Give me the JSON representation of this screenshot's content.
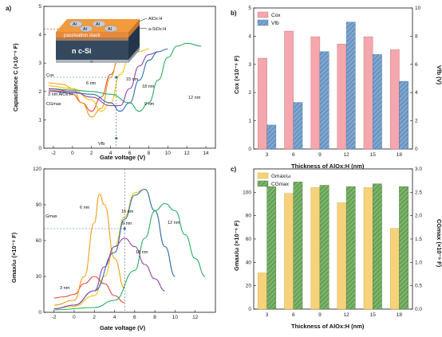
{
  "panel_labels": {
    "a": "a)",
    "b": "b)",
    "c": "c)"
  },
  "inset": {
    "top_layer": "AlOx:H",
    "middle_layer": "a-SiOx:H",
    "stack_label": "passivation stack",
    "substrate": "n c-Si",
    "bottom": "Al",
    "dot_label": "Al"
  },
  "colors": {
    "red_bar": "#f4a7ad",
    "blue_bar": "#7fa6cf",
    "yellow_bar": "#f7d27a",
    "green_bar": "#7bb36a",
    "c3": "#e74c3c",
    "c6": "#f39c12",
    "c9": "#f1c40f",
    "c12": "#27ae60",
    "c15": "#2c6fbb",
    "c18": "#8e44ad"
  },
  "chart_data": [
    {
      "id": "a_top",
      "type": "line",
      "xlabel": "Gate voltage (V)",
      "ylabel": "Capacitance C (×10⁻⁹ F)",
      "xlim": [
        -3,
        15
      ],
      "ylim": [
        0,
        5
      ],
      "xticks": [
        -2,
        0,
        2,
        4,
        6,
        8,
        10,
        12,
        14
      ],
      "yticks": [
        0,
        1,
        2,
        3,
        4,
        5
      ],
      "grid": false,
      "annotations": {
        "cox": "Cox",
        "cg": "CGmax",
        "vfb": "Vfb"
      },
      "marker_points": [
        [
          4.2,
          4.2
        ],
        [
          4.6,
          2.5
        ],
        [
          4.6,
          0.35
        ]
      ],
      "series": [
        {
          "name": "3 nm AlOx:H",
          "color_key": "c3",
          "x": [
            -2.5,
            -1,
            0,
            1,
            2,
            3,
            4,
            5,
            6
          ],
          "y": [
            2.05,
            2.0,
            1.9,
            1.6,
            1.3,
            1.8,
            2.6,
            3.3,
            3.7
          ]
        },
        {
          "name": "6 nm",
          "color_key": "c6",
          "x": [
            -2.5,
            -1,
            0,
            1,
            2,
            3,
            4,
            5,
            6,
            7
          ],
          "y": [
            2.3,
            2.25,
            2.1,
            1.6,
            1.1,
            1.4,
            2.5,
            3.5,
            3.9,
            4.0
          ]
        },
        {
          "name": "9 nm",
          "color_key": "c9",
          "x": [
            -2.5,
            0,
            2,
            3,
            4,
            5,
            6,
            7,
            8
          ],
          "y": [
            2.2,
            2.1,
            1.7,
            1.3,
            1.6,
            2.6,
            3.2,
            3.4,
            3.5
          ]
        },
        {
          "name": "12 nm",
          "color_key": "c12",
          "x": [
            -2.5,
            0,
            2,
            4,
            6,
            7,
            8,
            9,
            10,
            11,
            12,
            13.5
          ],
          "y": [
            2.1,
            2.05,
            2.0,
            1.9,
            1.6,
            1.3,
            1.6,
            2.4,
            3.2,
            3.6,
            3.7,
            3.6
          ]
        },
        {
          "name": "15 nm",
          "color_key": "c15",
          "x": [
            -2.5,
            0,
            2,
            4,
            5,
            6,
            7,
            8,
            9,
            10
          ],
          "y": [
            2.0,
            1.95,
            1.9,
            1.6,
            1.3,
            1.6,
            2.4,
            3.1,
            3.4,
            3.5
          ]
        },
        {
          "name": "18 nm",
          "color_key": "c18",
          "x": [
            -2.5,
            0,
            2,
            4,
            5,
            6,
            7,
            8,
            9
          ],
          "y": [
            2.1,
            2.0,
            1.8,
            1.5,
            1.5,
            2.1,
            2.9,
            3.3,
            3.4
          ]
        }
      ],
      "curve_labels": [
        "3 nm AlOx:H",
        "6 nm",
        "9 nm",
        "12 nm",
        "15 nm",
        "18 nm"
      ]
    },
    {
      "id": "a_bottom",
      "type": "line",
      "xlabel": "Gate voltage (V)",
      "ylabel": "Gmax/ω (×10⁻⁹ F)",
      "xlim": [
        -3,
        14
      ],
      "ylim": [
        0,
        120
      ],
      "xticks": [
        -2,
        0,
        2,
        4,
        6,
        8,
        10,
        12
      ],
      "yticks": [
        0,
        30,
        60,
        90,
        120
      ],
      "grid": false,
      "annotations": {
        "gmax": "Gmax"
      },
      "marker_points": [
        [
          5,
          70
        ]
      ],
      "series": [
        {
          "name": "3 nm",
          "color_key": "c3",
          "x": [
            -2,
            -1,
            0,
            1,
            2,
            3,
            4,
            5
          ],
          "y": [
            12,
            13,
            15,
            24,
            30,
            24,
            14,
            8
          ]
        },
        {
          "name": "6 nm",
          "color_key": "c6",
          "x": [
            -2,
            0,
            1,
            2,
            2.5,
            3,
            4,
            5
          ],
          "y": [
            6,
            10,
            30,
            75,
            99,
            90,
            45,
            20
          ]
        },
        {
          "name": "9 nm",
          "color_key": "c9",
          "x": [
            -2,
            0,
            2,
            3,
            4,
            5,
            6,
            7,
            8,
            9,
            10
          ],
          "y": [
            3,
            5,
            14,
            30,
            55,
            80,
            100,
            103,
            85,
            55,
            30
          ]
        },
        {
          "name": "12 nm",
          "color_key": "c12",
          "x": [
            -2,
            2,
            4,
            6,
            7,
            8,
            9,
            10,
            11,
            12,
            13
          ],
          "y": [
            2,
            4,
            10,
            35,
            62,
            85,
            91,
            85,
            65,
            45,
            30
          ]
        },
        {
          "name": "15 nm",
          "color_key": "c15",
          "x": [
            -2,
            0,
            2,
            4,
            5,
            6,
            7,
            8,
            9,
            10
          ],
          "y": [
            3,
            6,
            18,
            50,
            78,
            98,
            103,
            85,
            55,
            30
          ]
        },
        {
          "name": "18 nm",
          "color_key": "c18",
          "x": [
            -2,
            0,
            2,
            3,
            4,
            5,
            6,
            7,
            8,
            9
          ],
          "y": [
            3,
            6,
            18,
            38,
            55,
            62,
            55,
            40,
            28,
            18
          ]
        }
      ],
      "curve_labels": [
        "3 nm",
        "6 nm",
        "9 nm",
        "12 nm",
        "15 nm",
        "18 nm"
      ]
    },
    {
      "id": "b",
      "type": "bar",
      "xlabel": "Thickness of AlOx:H (nm)",
      "ylabel_left": "Cox (×10⁻⁹ F)",
      "ylabel_right": "Vfb (V)",
      "categories": [
        "3",
        "6",
        "9",
        "12",
        "15",
        "18"
      ],
      "ylim_left": [
        0,
        5
      ],
      "ylim_right": [
        0,
        10
      ],
      "yticks_left": [
        0,
        1,
        2,
        3,
        4,
        5
      ],
      "yticks_right": [
        0,
        2,
        4,
        6,
        8,
        10
      ],
      "legend_position": "top-left",
      "series": [
        {
          "name": "Cox",
          "axis": "left",
          "color_key": "red_bar",
          "values": [
            3.22,
            4.18,
            3.98,
            3.72,
            3.98,
            3.52
          ]
        },
        {
          "name": "Vfb",
          "axis": "right",
          "color_key": "blue_bar",
          "values": [
            1.7,
            3.3,
            6.9,
            9.0,
            6.7,
            4.8
          ]
        }
      ]
    },
    {
      "id": "c",
      "type": "bar",
      "xlabel": "Thickness of AlOx:H (nm)",
      "ylabel_left": "Gmax/ω (×10⁻⁹ F)",
      "ylabel_right": "CGmax (×10⁻⁹ F)",
      "categories": [
        "3",
        "6",
        "9",
        "12",
        "15",
        "18"
      ],
      "ylim_left": [
        0,
        120
      ],
      "ylim_right": [
        0,
        3.0
      ],
      "yticks_left": [
        0,
        20,
        40,
        60,
        80,
        100
      ],
      "yticks_right": [
        0.0,
        0.5,
        1.0,
        1.5,
        2.0,
        2.5,
        3.0
      ],
      "legend_position": "top-left",
      "series": [
        {
          "name": "Gmax/ω",
          "axis": "left",
          "color_key": "yellow_bar",
          "values": [
            31,
            99,
            104,
            91,
            104,
            69
          ]
        },
        {
          "name": "CGmax",
          "axis": "right",
          "color_key": "green_bar",
          "values": [
            2.62,
            2.72,
            2.65,
            2.62,
            2.68,
            2.62
          ]
        }
      ]
    }
  ]
}
